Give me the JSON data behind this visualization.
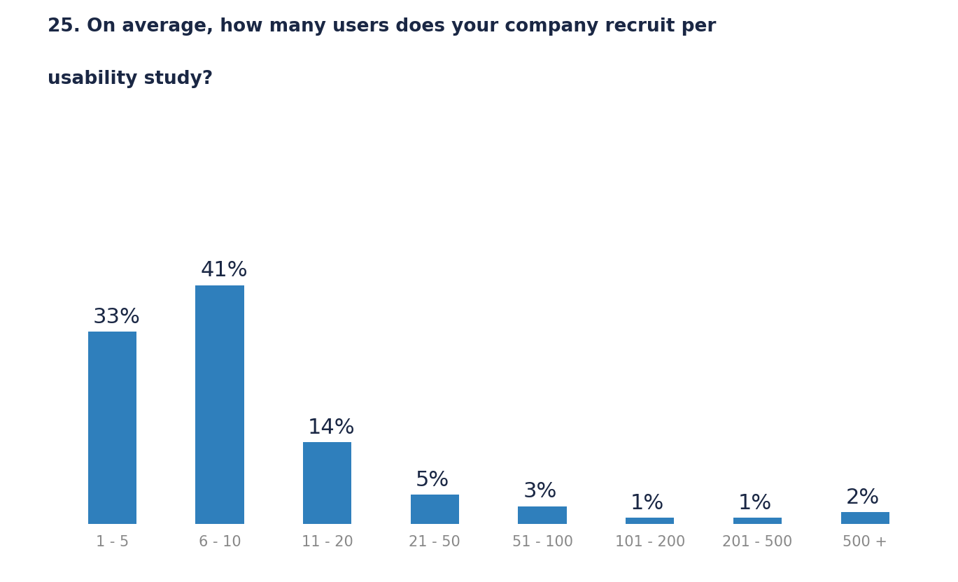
{
  "title_line1": "25. On average, how many users does your company recruit per",
  "title_line2": "usability study?",
  "categories": [
    "1 - 5",
    "6 - 10",
    "11 - 20",
    "21 - 50",
    "51 - 100",
    "101 - 200",
    "201 - 500",
    "500 +"
  ],
  "values": [
    33,
    41,
    14,
    5,
    3,
    1,
    1,
    2
  ],
  "bar_color": "#2f7fbc",
  "background_color": "#ffffff",
  "title_color": "#1a2744",
  "label_color": "#1a2744",
  "tick_color": "#888888",
  "bar_width": 0.45,
  "ylim": [
    0,
    52
  ],
  "title_fontsize": 19,
  "label_fontsize": 22,
  "tick_fontsize": 15
}
